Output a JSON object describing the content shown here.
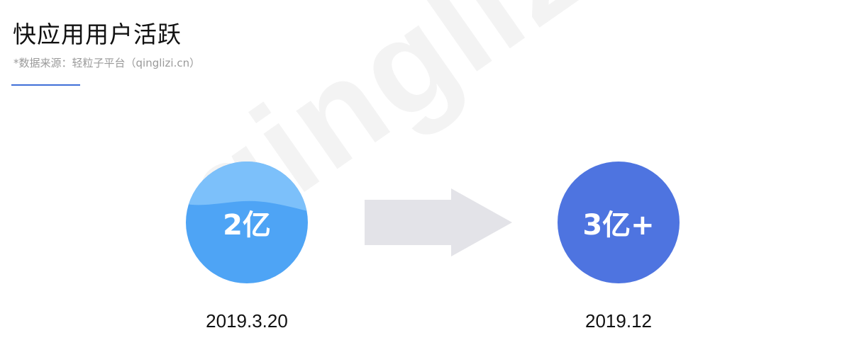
{
  "title": "快应用用户活跃",
  "source": "*数据来源：轻粒子平台（qinglizi.cn）",
  "watermark": "qinglizi.cn",
  "start": {
    "value": "2亿",
    "date": "2019.3.20",
    "color": "#4ea4f5",
    "wave_color": "#7cc0fa"
  },
  "end": {
    "value": "3亿+",
    "date": "2019.12",
    "color": "#4e74e0"
  },
  "arrow_color": "#e3e3e8",
  "accent_color": "#3f6fd8"
}
